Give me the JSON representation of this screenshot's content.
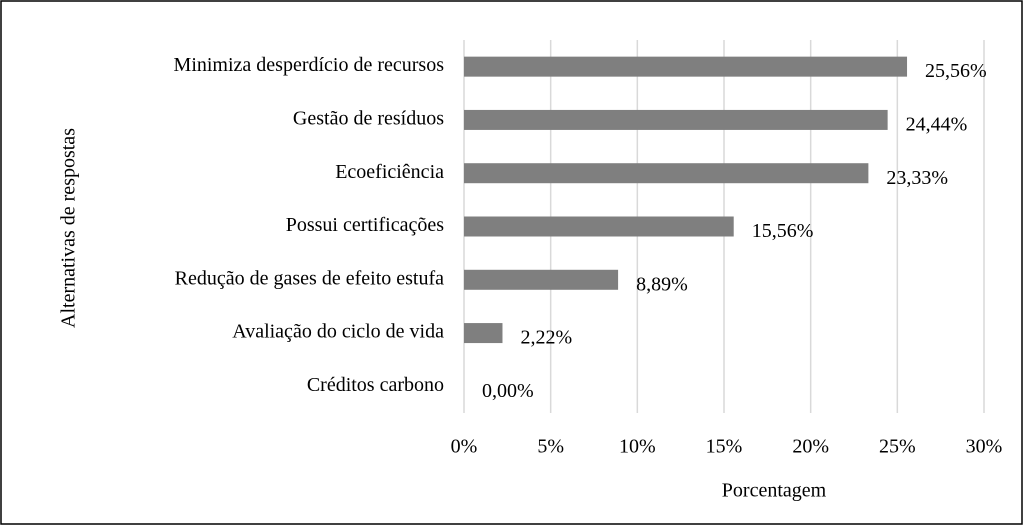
{
  "chart_data": {
    "type": "bar",
    "orientation": "horizontal",
    "categories": [
      "Minimiza desperdício de recursos",
      "Gestão de resíduos",
      "Ecoeficiência",
      "Possui certificações",
      "Redução de gases de efeito estufa",
      "Avaliação do ciclo de vida",
      "Créditos carbono"
    ],
    "values": [
      25.56,
      24.44,
      23.33,
      15.56,
      8.89,
      2.22,
      0
    ],
    "value_labels": [
      "25,56%",
      "24,44%",
      "23,33%",
      "15,56%",
      "8,89%",
      "2,22%",
      "0,00%"
    ],
    "color": "#7f7f7f",
    "xlim": [
      0,
      30
    ],
    "xticks": [
      {
        "value": 0,
        "label": "0%"
      },
      {
        "value": 5,
        "label": "5%"
      },
      {
        "value": 10,
        "label": "10%"
      },
      {
        "value": 15,
        "label": "15%"
      },
      {
        "value": 20,
        "label": "20%"
      },
      {
        "value": 25,
        "label": "25%"
      },
      {
        "value": 30,
        "label": "30%"
      }
    ],
    "grid": true,
    "x_label": "Porcentagem",
    "y_label": "Alternativas de respostas"
  }
}
